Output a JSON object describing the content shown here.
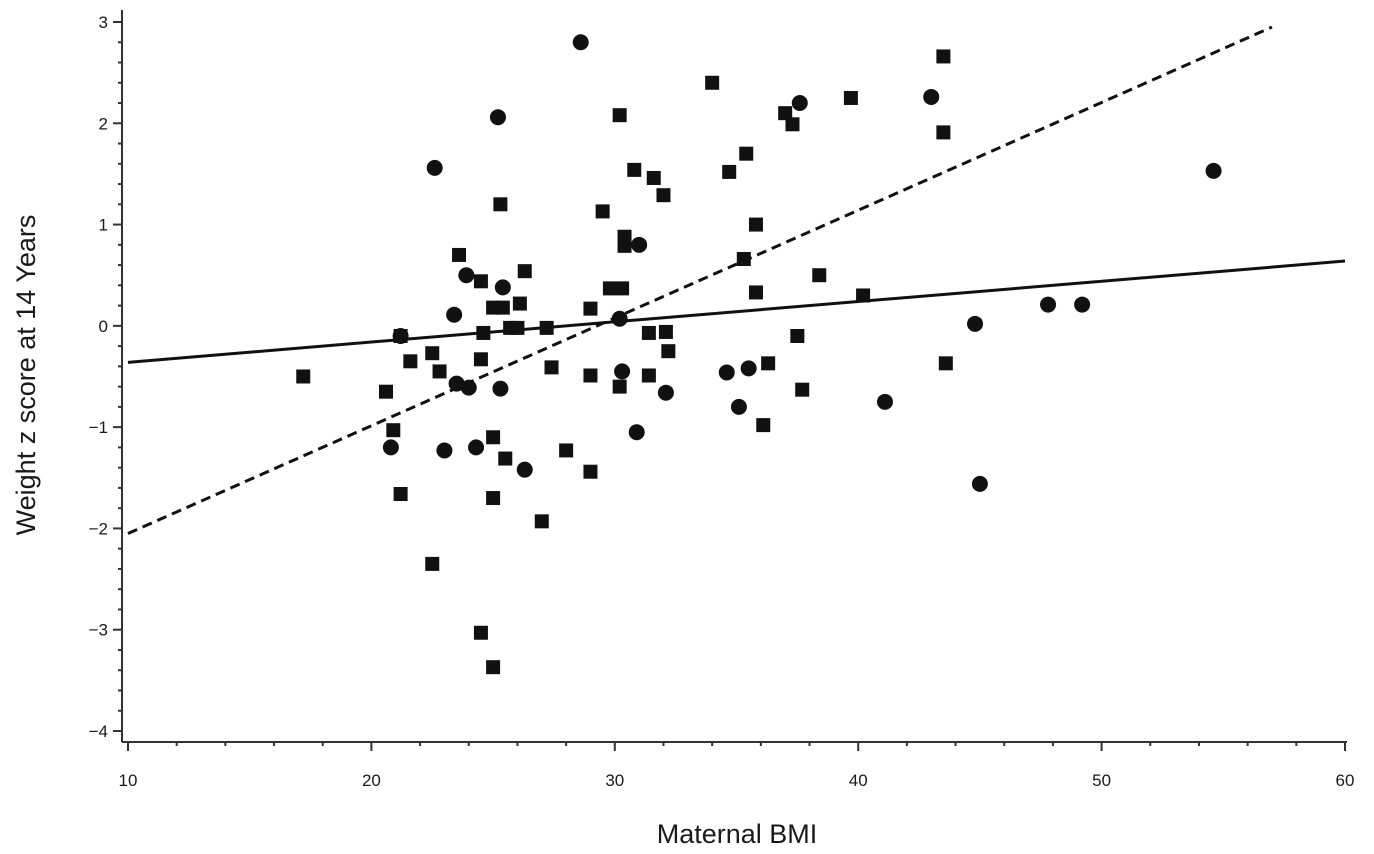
{
  "chart_data": {
    "type": "scatter",
    "title": "",
    "xlabel": "Maternal BMI",
    "ylabel": "Weight z score at 14 Years",
    "xlim": [
      10,
      60
    ],
    "ylim": [
      -4,
      3
    ],
    "x_ticks": [
      10,
      20,
      30,
      40,
      50,
      60
    ],
    "y_ticks": [
      -4,
      -3,
      -2,
      -1,
      0,
      1,
      2,
      3
    ],
    "grid": false,
    "legend": "none",
    "colors": {
      "marker": "#111111",
      "axis": "#333333"
    },
    "series": [
      {
        "marker": "square",
        "points": [
          [
            17.2,
            -0.5
          ],
          [
            20.6,
            -0.65
          ],
          [
            20.9,
            -1.03
          ],
          [
            21.2,
            -1.66
          ],
          [
            21.2,
            -0.1
          ],
          [
            21.6,
            -0.35
          ],
          [
            22.5,
            -0.27
          ],
          [
            22.5,
            -2.35
          ],
          [
            22.8,
            -0.45
          ],
          [
            23.6,
            0.7
          ],
          [
            24.5,
            -3.03
          ],
          [
            24.5,
            0.44
          ],
          [
            24.5,
            -0.33
          ],
          [
            24.6,
            -0.07
          ],
          [
            25.0,
            -3.37
          ],
          [
            25.0,
            -1.1
          ],
          [
            25.0,
            -1.7
          ],
          [
            25.0,
            0.18
          ],
          [
            25.3,
            1.2
          ],
          [
            25.4,
            0.18
          ],
          [
            25.5,
            -1.31
          ],
          [
            25.7,
            -0.02
          ],
          [
            26.0,
            -0.02
          ],
          [
            26.1,
            0.22
          ],
          [
            26.3,
            0.54
          ],
          [
            27.0,
            -1.93
          ],
          [
            27.2,
            -0.02
          ],
          [
            27.4,
            -0.41
          ],
          [
            28.0,
            -1.23
          ],
          [
            29.0,
            -0.49
          ],
          [
            29.0,
            -1.44
          ],
          [
            29.0,
            0.17
          ],
          [
            29.5,
            1.13
          ],
          [
            29.8,
            0.37
          ],
          [
            30.2,
            2.08
          ],
          [
            30.2,
            -0.6
          ],
          [
            30.3,
            0.37
          ],
          [
            30.4,
            0.88
          ],
          [
            30.4,
            0.79
          ],
          [
            30.8,
            1.54
          ],
          [
            31.4,
            -0.07
          ],
          [
            31.4,
            -0.49
          ],
          [
            31.6,
            1.46
          ],
          [
            32.0,
            1.29
          ],
          [
            32.1,
            -0.06
          ],
          [
            32.2,
            -0.25
          ],
          [
            34.0,
            2.4
          ],
          [
            34.7,
            1.52
          ],
          [
            35.3,
            0.66
          ],
          [
            35.4,
            1.7
          ],
          [
            35.8,
            1.0
          ],
          [
            35.8,
            0.33
          ],
          [
            36.1,
            -0.98
          ],
          [
            36.3,
            -0.37
          ],
          [
            37.0,
            2.1
          ],
          [
            37.3,
            1.99
          ],
          [
            37.5,
            -0.1
          ],
          [
            37.7,
            -0.63
          ],
          [
            38.4,
            0.5
          ],
          [
            39.7,
            2.25
          ],
          [
            40.2,
            0.3
          ],
          [
            43.5,
            2.66
          ],
          [
            43.5,
            1.91
          ],
          [
            43.6,
            -0.37
          ]
        ]
      },
      {
        "marker": "circle",
        "points": [
          [
            20.8,
            -1.2
          ],
          [
            21.2,
            -0.1
          ],
          [
            22.6,
            1.56
          ],
          [
            23.0,
            -1.23
          ],
          [
            23.4,
            0.11
          ],
          [
            23.5,
            -0.57
          ],
          [
            23.9,
            0.5
          ],
          [
            24.0,
            -0.61
          ],
          [
            24.3,
            -1.2
          ],
          [
            25.2,
            2.06
          ],
          [
            25.3,
            -0.62
          ],
          [
            25.4,
            0.38
          ],
          [
            26.3,
            -1.42
          ],
          [
            28.6,
            2.8
          ],
          [
            30.2,
            0.07
          ],
          [
            30.3,
            -0.45
          ],
          [
            30.9,
            -1.05
          ],
          [
            31.0,
            0.8
          ],
          [
            32.1,
            -0.66
          ],
          [
            34.6,
            -0.46
          ],
          [
            35.1,
            -0.8
          ],
          [
            35.5,
            -0.42
          ],
          [
            37.6,
            2.2
          ],
          [
            41.1,
            -0.75
          ],
          [
            43.0,
            2.26
          ],
          [
            44.8,
            0.02
          ],
          [
            45.0,
            -1.56
          ],
          [
            47.8,
            0.21
          ],
          [
            49.2,
            0.21
          ],
          [
            54.6,
            1.53
          ]
        ]
      }
    ],
    "fit_lines": [
      {
        "style": "solid",
        "x": [
          10,
          60
        ],
        "y": [
          -0.36,
          0.64
        ]
      },
      {
        "style": "dashed",
        "x": [
          10,
          57
        ],
        "y": [
          -2.05,
          2.95
        ]
      }
    ]
  }
}
